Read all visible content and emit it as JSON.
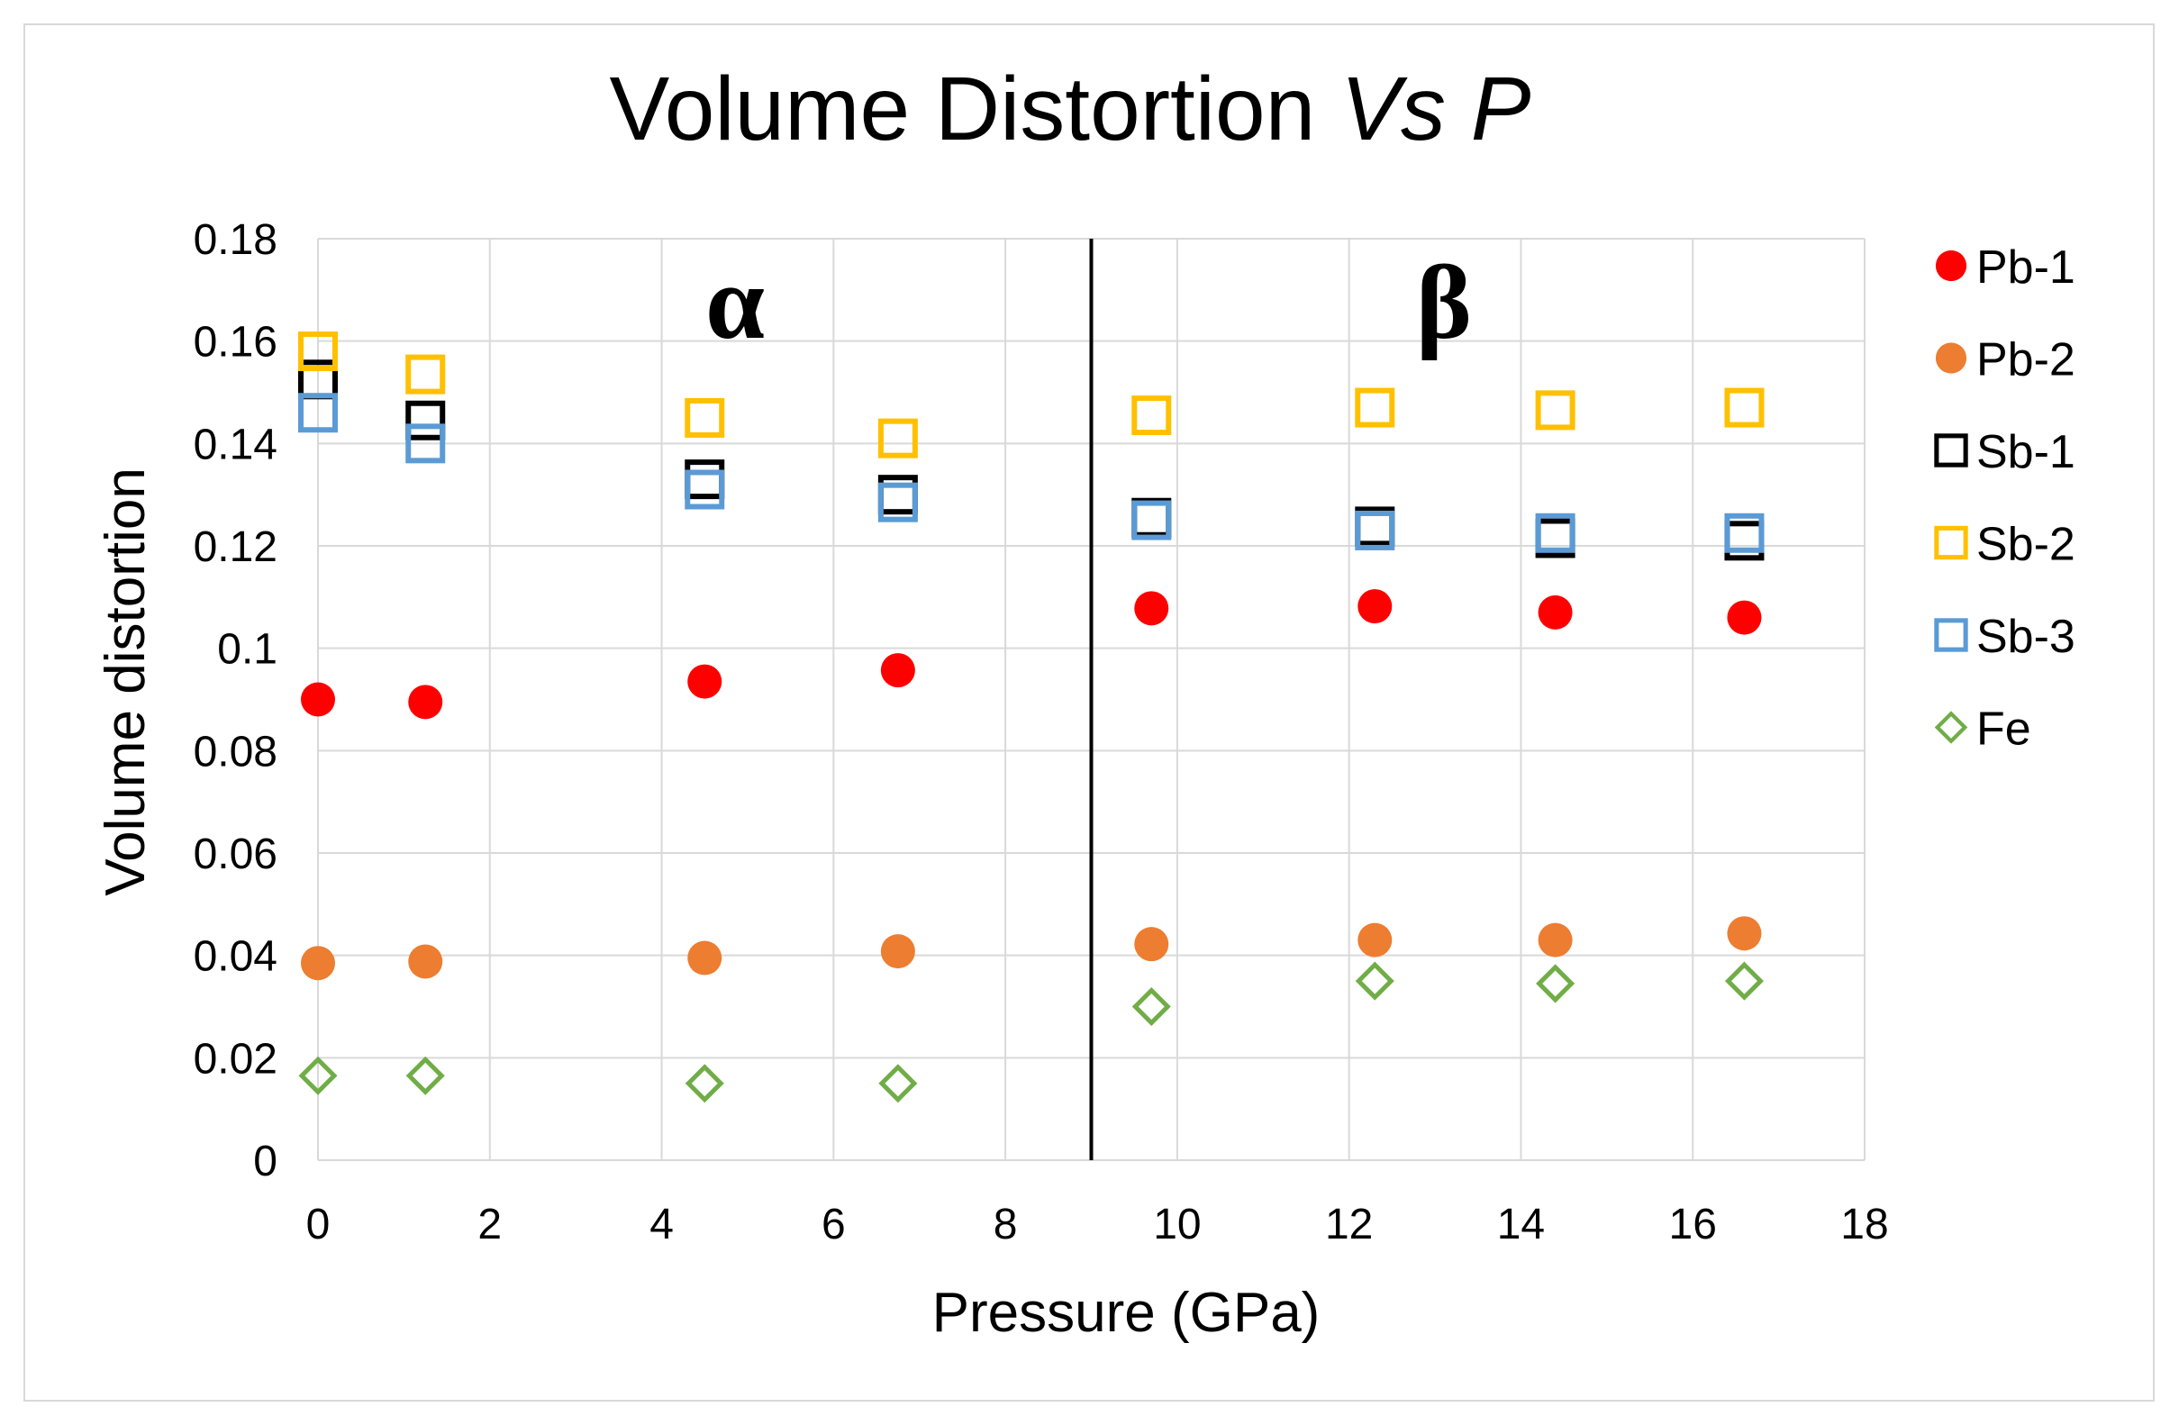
{
  "chart_data": {
    "type": "scatter",
    "title": "Volume Distortion",
    "title_italic": "Vs P",
    "xlabel": "Pressure (GPa)",
    "ylabel": "Volume distortion",
    "xlim": [
      0,
      18
    ],
    "ylim": [
      0,
      0.18
    ],
    "x_ticks": [
      "0",
      "2",
      "4",
      "6",
      "8",
      "10",
      "12",
      "14",
      "16",
      "18"
    ],
    "y_ticks": [
      "0",
      "0.02",
      "0.04",
      "0.06",
      "0.08",
      "0.1",
      "0.12",
      "0.14",
      "0.16",
      "0.18"
    ],
    "grid": true,
    "legend_position": "right",
    "phase_boundary_x": 9,
    "annotations": [
      {
        "text": "α",
        "x": 4.9,
        "y": 0.168
      },
      {
        "text": "β",
        "x": 13.1,
        "y": 0.168
      }
    ],
    "series": [
      {
        "name": "Pb-1",
        "marker": "filled-circle",
        "color": "#ff0000",
        "x": [
          0,
          1.25,
          4.5,
          6.75,
          9.7,
          12.3,
          14.4,
          16.6
        ],
        "y": [
          0.09,
          0.0895,
          0.0935,
          0.0957,
          0.1078,
          0.1082,
          0.107,
          0.106
        ]
      },
      {
        "name": "Pb-2",
        "marker": "filled-circle",
        "color": "#ed7d31",
        "x": [
          0,
          1.25,
          4.5,
          6.75,
          9.7,
          12.3,
          14.4,
          16.6
        ],
        "y": [
          0.0385,
          0.0388,
          0.0395,
          0.0408,
          0.0422,
          0.043,
          0.043,
          0.0443
        ]
      },
      {
        "name": "Sb-1",
        "marker": "open-square",
        "color": "#000000",
        "x": [
          0,
          1.25,
          4.5,
          6.75,
          9.7,
          12.3,
          14.4,
          16.6
        ],
        "y": [
          0.1525,
          0.1445,
          0.133,
          0.13,
          0.1255,
          0.1238,
          0.1215,
          0.121
        ]
      },
      {
        "name": "Sb-2",
        "marker": "open-square",
        "color": "#ffc000",
        "x": [
          0,
          1.25,
          4.5,
          6.75,
          9.7,
          12.3,
          14.4,
          16.6
        ],
        "y": [
          0.158,
          0.1535,
          0.145,
          0.141,
          0.1455,
          0.147,
          0.1465,
          0.147
        ]
      },
      {
        "name": "Sb-3",
        "marker": "open-square",
        "color": "#5b9bd5",
        "x": [
          0,
          1.25,
          4.5,
          6.75,
          9.7,
          12.3,
          14.4,
          16.6
        ],
        "y": [
          0.146,
          0.14,
          0.131,
          0.1285,
          0.125,
          0.123,
          0.1225,
          0.1225
        ]
      },
      {
        "name": "Fe",
        "marker": "open-diamond",
        "color": "#70ad47",
        "x": [
          0,
          1.25,
          4.5,
          6.75,
          9.7,
          12.3,
          14.4,
          16.6
        ],
        "y": [
          0.0165,
          0.0165,
          0.015,
          0.015,
          0.03,
          0.035,
          0.0345,
          0.035
        ]
      }
    ]
  }
}
